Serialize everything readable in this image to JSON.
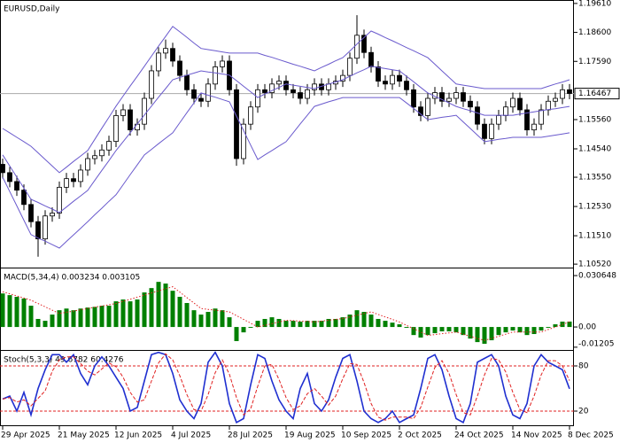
{
  "chart_data": [
    {
      "type": "candlestick",
      "title": "EURUSD,Daily",
      "categories": [
        "29 Apr 2025",
        null,
        null,
        null,
        null,
        null,
        null,
        null,
        "21 May 2025",
        null,
        null,
        null,
        null,
        null,
        null,
        null,
        "12 Jun 2025",
        null,
        null,
        null,
        null,
        null,
        null,
        null,
        "4 Jul 2025",
        null,
        null,
        null,
        null,
        null,
        null,
        null,
        "28 Jul 2025",
        null,
        null,
        null,
        null,
        null,
        null,
        null,
        "19 Aug 2025",
        null,
        null,
        null,
        null,
        null,
        null,
        null,
        "10 Sep 2025",
        null,
        null,
        null,
        null,
        null,
        null,
        null,
        "2 Oct 2025",
        null,
        null,
        null,
        null,
        null,
        null,
        null,
        "24 Oct 2025",
        null,
        null,
        null,
        null,
        null,
        null,
        null,
        "14 Nov 2025",
        null,
        null,
        null,
        null,
        null,
        null,
        null,
        "8 Dec 2025"
      ],
      "open": [
        1.14,
        1.1371,
        1.134,
        1.131,
        1.126,
        1.12,
        1.114,
        1.122,
        1.123,
        1.132,
        1.135,
        1.134,
        1.138,
        1.142,
        1.143,
        1.145,
        1.148,
        1.157,
        1.159,
        1.152,
        1.154,
        1.163,
        1.1726,
        1.1788,
        1.1804,
        1.176,
        1.171,
        1.166,
        1.163,
        1.162,
        1.168,
        1.174,
        1.176,
        1.166,
        1.142,
        1.154,
        1.16,
        1.166,
        1.165,
        1.168,
        1.169,
        1.166,
        1.165,
        1.163,
        1.166,
        1.168,
        1.166,
        1.168,
        1.169,
        1.171,
        1.177,
        1.185,
        1.179,
        1.174,
        1.169,
        1.168,
        1.171,
        1.169,
        1.166,
        1.16,
        1.157,
        1.163,
        1.165,
        1.162,
        1.163,
        1.165,
        1.162,
        1.16,
        1.154,
        1.149,
        1.154,
        1.157,
        1.16,
        1.163,
        1.159,
        1.152,
        1.154,
        1.159,
        1.162,
        1.163,
        1.166
      ],
      "high": [
        1.142,
        1.1391,
        1.136,
        1.133,
        1.128,
        1.122,
        1.124,
        1.125,
        1.134,
        1.137,
        1.137,
        1.14,
        1.144,
        1.145,
        1.147,
        1.15,
        1.159,
        1.161,
        1.161,
        1.156,
        1.165,
        1.1746,
        1.1808,
        1.1835,
        1.1824,
        1.178,
        1.173,
        1.168,
        1.165,
        1.17,
        1.176,
        1.178,
        1.178,
        1.168,
        1.156,
        1.162,
        1.168,
        1.168,
        1.17,
        1.171,
        1.171,
        1.168,
        1.167,
        1.168,
        1.17,
        1.17,
        1.17,
        1.171,
        1.173,
        1.179,
        1.192,
        1.187,
        1.181,
        1.176,
        1.171,
        1.173,
        1.173,
        1.171,
        1.168,
        1.162,
        1.165,
        1.167,
        1.167,
        1.165,
        1.167,
        1.167,
        1.164,
        1.162,
        1.156,
        1.156,
        1.159,
        1.162,
        1.165,
        1.165,
        1.161,
        1.156,
        1.161,
        1.164,
        1.165,
        1.168,
        1.168
      ],
      "low": [
        1.1351,
        1.132,
        1.129,
        1.124,
        1.118,
        1.1078,
        1.112,
        1.12,
        1.121,
        1.13,
        1.132,
        1.132,
        1.136,
        1.14,
        1.141,
        1.143,
        1.146,
        1.155,
        1.15,
        1.15,
        1.152,
        1.161,
        1.1706,
        1.1768,
        1.174,
        1.169,
        1.164,
        1.161,
        1.16,
        1.16,
        1.166,
        1.172,
        1.164,
        1.1395,
        1.14,
        1.152,
        1.158,
        1.163,
        1.163,
        1.166,
        1.164,
        1.163,
        1.161,
        1.161,
        1.164,
        1.164,
        1.164,
        1.166,
        1.167,
        1.169,
        1.175,
        1.177,
        1.172,
        1.167,
        1.166,
        1.166,
        1.167,
        1.164,
        1.158,
        1.155,
        1.155,
        1.161,
        1.16,
        1.16,
        1.161,
        1.16,
        1.158,
        1.152,
        1.147,
        1.147,
        1.152,
        1.155,
        1.158,
        1.157,
        1.15,
        1.15,
        1.152,
        1.157,
        1.16,
        1.161,
        1.1627
      ],
      "close": [
        1.1371,
        1.134,
        1.131,
        1.126,
        1.12,
        1.114,
        1.122,
        1.123,
        1.132,
        1.135,
        1.134,
        1.138,
        1.142,
        1.143,
        1.145,
        1.148,
        1.157,
        1.159,
        1.152,
        1.154,
        1.163,
        1.1726,
        1.1788,
        1.1804,
        1.176,
        1.171,
        1.166,
        1.163,
        1.162,
        1.168,
        1.174,
        1.176,
        1.166,
        1.142,
        1.154,
        1.16,
        1.166,
        1.165,
        1.168,
        1.169,
        1.166,
        1.165,
        1.163,
        1.166,
        1.168,
        1.166,
        1.168,
        1.169,
        1.171,
        1.177,
        1.185,
        1.179,
        1.174,
        1.169,
        1.168,
        1.171,
        1.169,
        1.166,
        1.16,
        1.157,
        1.163,
        1.165,
        1.162,
        1.163,
        1.165,
        1.162,
        1.16,
        1.154,
        1.149,
        1.154,
        1.157,
        1.16,
        1.163,
        1.159,
        1.152,
        1.154,
        1.159,
        1.162,
        1.163,
        1.166,
        1.1647
      ],
      "up_color": "#ffffff",
      "down_color": "#000000",
      "series": [
        {
          "color": "#6a5acd",
          "style": "solid",
          "values": [
            1.1525,
            1.151,
            1.1494,
            1.1479,
            1.1463,
            1.144,
            1.1417,
            1.1394,
            1.1371,
            1.139,
            1.141,
            1.1429,
            1.1448,
            1.1487,
            1.1526,
            1.1564,
            1.1603,
            1.1638,
            1.1673,
            1.1707,
            1.1742,
            1.1777,
            1.1812,
            1.1846,
            1.1881,
            1.1862,
            1.1843,
            1.1823,
            1.1804,
            1.18,
            1.1796,
            1.1792,
            1.1788,
            1.1788,
            1.1788,
            1.1788,
            1.1788,
            1.178,
            1.1773,
            1.1765,
            1.1757,
            1.1749,
            1.1742,
            1.1734,
            1.1726,
            1.1738,
            1.1749,
            1.1761,
            1.1772,
            1.1795,
            1.1819,
            1.1842,
            1.1865,
            1.1854,
            1.1842,
            1.1831,
            1.1819,
            1.1807,
            1.1796,
            1.1784,
            1.1772,
            1.1749,
            1.1726,
            1.1703,
            1.168,
            1.1676,
            1.1672,
            1.1668,
            1.1664,
            1.1664,
            1.1664,
            1.1664,
            1.1664,
            1.1664,
            1.1664,
            1.1664,
            1.1664,
            1.1672,
            1.168,
            1.1687,
            1.1695
          ]
        },
        {
          "color": "#6a5acd",
          "style": "solid",
          "values": [
            1.1433,
            1.1394,
            1.1355,
            1.1317,
            1.1278,
            1.1267,
            1.1255,
            1.1244,
            1.1232,
            1.1251,
            1.1271,
            1.129,
            1.1309,
            1.1344,
            1.1379,
            1.1413,
            1.1448,
            1.1479,
            1.151,
            1.1541,
            1.1572,
            1.1603,
            1.1634,
            1.1664,
            1.1695,
            1.1703,
            1.1711,
            1.1718,
            1.1726,
            1.1722,
            1.1719,
            1.1715,
            1.1711,
            1.1692,
            1.1672,
            1.1653,
            1.1633,
            1.1645,
            1.1657,
            1.1668,
            1.168,
            1.1676,
            1.1672,
            1.1668,
            1.1664,
            1.1672,
            1.168,
            1.1687,
            1.1695,
            1.1707,
            1.1719,
            1.173,
            1.1742,
            1.1738,
            1.1734,
            1.173,
            1.1726,
            1.1707,
            1.1688,
            1.1668,
            1.1649,
            1.1637,
            1.1626,
            1.1614,
            1.1602,
            1.1594,
            1.1587,
            1.1579,
            1.1571,
            1.1571,
            1.1571,
            1.1571,
            1.1571,
            1.1575,
            1.1579,
            1.1583,
            1.1587,
            1.1591,
            1.1594,
            1.1598,
            1.1602
          ]
        },
        {
          "color": "#6a5acd",
          "style": "solid",
          "values": [
            1.1355,
            1.1305,
            1.1255,
            1.1205,
            1.1155,
            1.1143,
            1.1132,
            1.112,
            1.1108,
            1.1131,
            1.1154,
            1.1177,
            1.12,
            1.1224,
            1.1247,
            1.1271,
            1.1294,
            1.1329,
            1.1364,
            1.1398,
            1.1433,
            1.1452,
            1.1472,
            1.1491,
            1.151,
            1.1545,
            1.158,
            1.1614,
            1.1649,
            1.1641,
            1.1634,
            1.1626,
            1.1618,
            1.1568,
            1.1518,
            1.1467,
            1.1417,
            1.1433,
            1.1448,
            1.1464,
            1.1479,
            1.151,
            1.1541,
            1.1571,
            1.1602,
            1.161,
            1.1618,
            1.1625,
            1.1633,
            1.1633,
            1.1633,
            1.1633,
            1.1633,
            1.1633,
            1.1633,
            1.1633,
            1.1633,
            1.1614,
            1.1595,
            1.1575,
            1.1556,
            1.156,
            1.1564,
            1.1567,
            1.1571,
            1.1548,
            1.1525,
            1.1502,
            1.1479,
            1.1483,
            1.1487,
            1.149,
            1.1494,
            1.1494,
            1.1494,
            1.1494,
            1.1494,
            1.1498,
            1.1502,
            1.1506,
            1.151
          ]
        }
      ],
      "last_price": 1.16467,
      "ylim": [
        1.104,
        1.1973
      ],
      "yticks": [
        {
          "value": 1.1961,
          "label": "1.19610"
        },
        {
          "value": 1.186,
          "label": "1.18600"
        },
        {
          "value": 1.1759,
          "label": "1.17590"
        },
        {
          "value": 1.1556,
          "label": "1.15560"
        },
        {
          "value": 1.1454,
          "label": "1.14540"
        },
        {
          "value": 1.1355,
          "label": "1.13550"
        },
        {
          "value": 1.1253,
          "label": "1.12530"
        },
        {
          "value": 1.1151,
          "label": "1.11510"
        },
        {
          "value": 1.1052,
          "label": "1.10520"
        }
      ],
      "grid": false
    },
    {
      "type": "bar",
      "title": "MACD(5,34,4) 0.003234 0.003105",
      "color": "#008000",
      "values": [
        0.02,
        0.019,
        0.018,
        0.017,
        0.0127,
        0.0048,
        0.0037,
        0.0074,
        0.01,
        0.011,
        0.01,
        0.011,
        0.0116,
        0.012,
        0.0127,
        0.0127,
        0.0153,
        0.0164,
        0.0153,
        0.0164,
        0.0206,
        0.0232,
        0.0269,
        0.0259,
        0.0216,
        0.018,
        0.0143,
        0.01,
        0.0074,
        0.009,
        0.011,
        0.01,
        0.0058,
        -0.0084,
        -0.0032,
        -0.0005,
        0.0037,
        0.0048,
        0.0058,
        0.0048,
        0.0037,
        0.0037,
        0.0032,
        0.0037,
        0.0037,
        0.0037,
        0.0048,
        0.0048,
        0.0058,
        0.0074,
        0.01,
        0.009,
        0.0074,
        0.0048,
        0.0037,
        0.0026,
        0.0016,
        -0.0005,
        -0.0048,
        -0.0063,
        -0.0048,
        -0.0037,
        -0.0026,
        -0.0026,
        -0.0032,
        -0.0048,
        -0.0069,
        -0.009,
        -0.01,
        -0.0079,
        -0.0048,
        -0.0032,
        -0.0021,
        -0.0032,
        -0.0048,
        -0.0042,
        -0.0021,
        -0.0005,
        0.0016,
        0.0032,
        0.003234
      ],
      "series": [
        {
          "color": "#e02020",
          "style": "dotted",
          "values": [
            0.021,
            0.0198,
            0.0185,
            0.0173,
            0.016,
            0.014,
            0.012,
            0.01,
            0.008,
            0.0088,
            0.0095,
            0.0103,
            0.011,
            0.0118,
            0.0125,
            0.0133,
            0.014,
            0.0153,
            0.0165,
            0.0178,
            0.019,
            0.0203,
            0.0215,
            0.0228,
            0.024,
            0.0208,
            0.0175,
            0.0143,
            0.011,
            0.0105,
            0.01,
            0.0095,
            0.009,
            0.0068,
            0.0045,
            0.0023,
            0,
            0.001,
            0.002,
            0.003,
            0.004,
            0.0038,
            0.0035,
            0.0033,
            0.003,
            0.0035,
            0.004,
            0.0045,
            0.005,
            0.006,
            0.007,
            0.008,
            0.009,
            0.0075,
            0.006,
            0.0045,
            0.003,
            0.001,
            -0.001,
            -0.003,
            -0.005,
            -0.0045,
            -0.004,
            -0.0035,
            -0.003,
            -0.0043,
            -0.0055,
            -0.0068,
            -0.008,
            -0.0068,
            -0.0055,
            -0.0043,
            -0.003,
            -0.003,
            -0.003,
            -0.003,
            -0.003,
            -0.0015,
            0,
            0.0015,
            0.003105
          ]
        }
      ],
      "ylim": [
        -0.0137,
        0.0349
      ],
      "yticks": [
        0.030648,
        {
          "value": 0,
          "label": "0.00"
        },
        -0.01205
      ],
      "grid": false
    },
    {
      "type": "line",
      "title": "Stoch(5,3,3) 49.6782 60.4276",
      "series": [
        {
          "color": "#1f2fd0",
          "style": "solid",
          "values": [
            36,
            40,
            20,
            45,
            15,
            50,
            75,
            95,
            95,
            85,
            95,
            70,
            55,
            80,
            92,
            80,
            65,
            50,
            20,
            25,
            60,
            95,
            98,
            95,
            70,
            35,
            20,
            10,
            30,
            85,
            98,
            80,
            30,
            5,
            10,
            55,
            95,
            90,
            60,
            35,
            20,
            10,
            50,
            70,
            30,
            20,
            35,
            65,
            90,
            95,
            60,
            20,
            10,
            5,
            10,
            20,
            5,
            10,
            15,
            50,
            90,
            95,
            75,
            40,
            10,
            5,
            30,
            85,
            90,
            95,
            80,
            40,
            15,
            10,
            30,
            80,
            95,
            85,
            80,
            75,
            49.6782
          ]
        },
        {
          "color": "#e02020",
          "style": "dashed",
          "values": [
            36,
            38,
            32,
            35,
            27,
            37,
            47,
            73,
            88,
            92,
            92,
            83,
            73,
            68,
            76,
            84,
            79,
            65,
            45,
            32,
            35,
            60,
            84,
            96,
            88,
            67,
            42,
            22,
            20,
            42,
            71,
            88,
            69,
            38,
            15,
            23,
            53,
            80,
            82,
            62,
            38,
            22,
            27,
            43,
            50,
            40,
            28,
            40,
            63,
            83,
            82,
            58,
            30,
            12,
            8,
            12,
            12,
            12,
            10,
            25,
            52,
            78,
            87,
            70,
            42,
            18,
            15,
            40,
            68,
            90,
            88,
            72,
            45,
            22,
            18,
            40,
            68,
            87,
            87,
            80,
            60.4276
          ]
        }
      ],
      "ylim": [
        0,
        100
      ],
      "yticks": [
        80,
        20
      ],
      "grid": true,
      "grid_color": "#e02020"
    }
  ]
}
